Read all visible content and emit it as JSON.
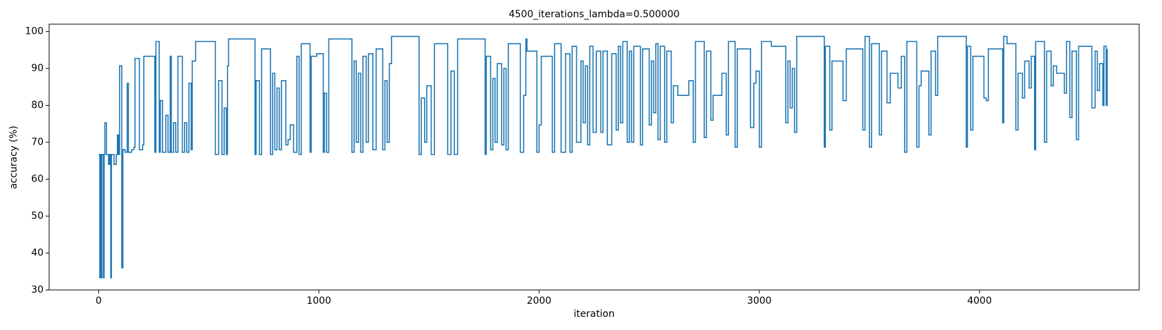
{
  "chart_data": {
    "type": "line",
    "drawstyle": "steps-post",
    "title": "4500_iterations_lambda=0.500000",
    "xlabel": "iteration",
    "ylabel": "accuracy (%)",
    "color": "#1f77b4",
    "xlim": [
      -225,
      4725
    ],
    "ylim": [
      30,
      102
    ],
    "xticks": [
      0,
      1000,
      2000,
      3000,
      4000
    ],
    "yticks": [
      30,
      40,
      50,
      60,
      70,
      80,
      90,
      100
    ],
    "x": [
      0,
      5,
      8,
      12,
      15,
      22,
      25,
      28,
      35,
      45,
      50,
      55,
      58,
      70,
      80,
      85,
      90,
      95,
      105,
      110,
      120,
      130,
      135,
      150,
      160,
      165,
      185,
      200,
      205,
      255,
      260,
      275,
      280,
      290,
      305,
      315,
      325,
      330,
      340,
      350,
      360,
      380,
      390,
      400,
      410,
      420,
      425,
      440,
      530,
      545,
      560,
      570,
      580,
      585,
      590,
      710,
      715,
      730,
      740,
      780,
      790,
      800,
      810,
      820,
      830,
      850,
      860,
      870,
      885,
      900,
      910,
      920,
      960,
      965,
      990,
      1020,
      1025,
      1035,
      1045,
      1150,
      1160,
      1170,
      1180,
      1190,
      1200,
      1215,
      1225,
      1245,
      1260,
      1290,
      1300,
      1310,
      1320,
      1330,
      1455,
      1465,
      1480,
      1490,
      1510,
      1525,
      1585,
      1600,
      1615,
      1630,
      1755,
      1760,
      1780,
      1790,
      1800,
      1810,
      1830,
      1840,
      1850,
      1860,
      1915,
      1930,
      1940,
      1945,
      1990,
      2000,
      2010,
      2060,
      2070,
      2100,
      2120,
      2140,
      2150,
      2170,
      2190,
      2200,
      2210,
      2220,
      2230,
      2245,
      2260,
      2280,
      2290,
      2310,
      2330,
      2350,
      2360,
      2370,
      2380,
      2400,
      2410,
      2420,
      2430,
      2460,
      2470,
      2500,
      2510,
      2520,
      2530,
      2540,
      2550,
      2570,
      2580,
      2600,
      2610,
      2630,
      2680,
      2700,
      2710,
      2750,
      2760,
      2780,
      2790,
      2830,
      2850,
      2860,
      2890,
      2900,
      2960,
      2975,
      2985,
      3000,
      3010,
      3055,
      3120,
      3130,
      3140,
      3150,
      3160,
      3170,
      3295,
      3300,
      3320,
      3330,
      3380,
      3395,
      3470,
      3480,
      3500,
      3510,
      3545,
      3555,
      3580,
      3595,
      3630,
      3645,
      3660,
      3670,
      3715,
      3725,
      3735,
      3770,
      3780,
      3800,
      3810,
      3940,
      3945,
      3960,
      3970,
      4020,
      4030,
      4040,
      4105,
      4110,
      4125,
      4165,
      4175,
      4195,
      4205,
      4225,
      4235,
      4250,
      4255,
      4295,
      4305,
      4325,
      4335,
      4350,
      4385,
      4395,
      4410,
      4420,
      4440,
      4450,
      4510,
      4525,
      4535,
      4545,
      4560,
      4565,
      4575,
      4580
    ],
    "values": [
      66.7,
      33.3,
      66.7,
      33.3,
      66.7,
      33.3,
      66.7,
      75.3,
      66.7,
      64,
      66.7,
      33.3,
      66.7,
      64,
      66.7,
      72,
      66.7,
      90.7,
      36,
      68,
      67.3,
      86,
      67.3,
      68,
      68.7,
      92.7,
      68,
      69.3,
      93.3,
      67.3,
      97.3,
      67.3,
      81.3,
      67.3,
      77.3,
      67.3,
      93.3,
      67.3,
      75.3,
      67.3,
      93.3,
      67.3,
      75.3,
      67.3,
      86,
      68,
      92,
      97.3,
      66.7,
      86.7,
      66.7,
      79.3,
      66.7,
      90.7,
      98,
      66.7,
      86.7,
      66.7,
      95.3,
      66.7,
      88.7,
      68,
      84.7,
      68,
      86.7,
      69.3,
      70.7,
      74.7,
      67.3,
      93.3,
      66.7,
      96.7,
      67.3,
      93.3,
      94,
      67.3,
      83.3,
      67.3,
      98,
      67.3,
      92,
      70,
      88.7,
      67.3,
      93.3,
      70,
      94,
      68,
      95.3,
      68,
      86.7,
      70,
      91.3,
      98.7,
      66.7,
      82,
      70,
      85.3,
      66.7,
      96.7,
      66.7,
      89.3,
      66.7,
      98,
      66.7,
      93.3,
      68,
      87.3,
      70,
      91.3,
      69.3,
      90,
      68,
      96.7,
      67.3,
      82.7,
      98,
      94.7,
      67.3,
      74.7,
      93.3,
      67.3,
      96.7,
      67.3,
      94,
      67.3,
      96,
      70,
      92,
      75.3,
      90.7,
      69.3,
      96,
      72.7,
      94.7,
      72.7,
      94.7,
      69.3,
      94,
      73.3,
      96,
      75.3,
      97.3,
      70,
      94.7,
      70,
      96,
      69.3,
      95.3,
      74.7,
      92,
      78,
      96.7,
      70.7,
      96,
      70,
      94.7,
      75.3,
      85.3,
      82.7,
      86.7,
      70,
      97.3,
      71.3,
      94.7,
      76,
      82.7,
      88.7,
      72,
      97.3,
      68.7,
      95.3,
      74,
      86,
      89.3,
      68.7,
      97.3,
      96,
      75.3,
      92,
      79.3,
      90,
      72.7,
      98.7,
      68.7,
      96,
      73.3,
      92,
      81.3,
      95.3,
      73.3,
      98.7,
      68.7,
      96.7,
      72,
      94.7,
      80.7,
      88.7,
      84.7,
      93.3,
      67.3,
      97.3,
      68.7,
      85.3,
      89.3,
      72,
      94.7,
      82.7,
      98.7,
      68.7,
      96,
      73.3,
      93.3,
      82,
      81.3,
      95.3,
      75.3,
      98.7,
      96.7,
      73.3,
      88.7,
      82,
      92,
      84.7,
      93.3,
      68,
      97.3,
      70,
      94.7,
      85.3,
      90.7,
      88.7,
      83.3,
      97.3,
      76.7,
      94.7,
      70.7,
      96,
      79.3,
      94.7,
      84,
      91.3,
      80,
      96,
      80,
      95.3
    ]
  }
}
